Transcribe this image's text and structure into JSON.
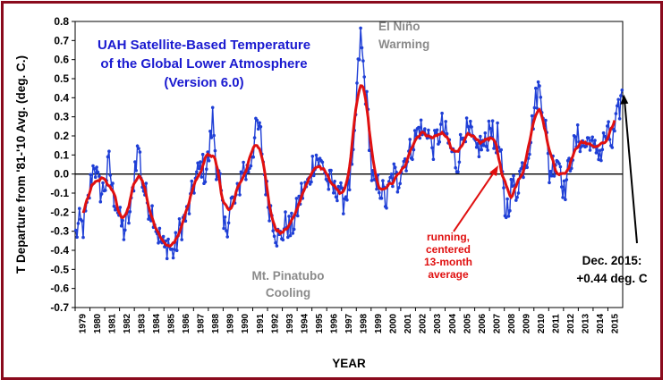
{
  "chart_data": {
    "type": "line",
    "title": [
      "UAH Satellite-Based Temperature",
      "of the Global Lower Atmosphere",
      "(Version 6.0)"
    ],
    "xlabel": "YEAR",
    "ylabel": "T Departure from '81-'10 Avg. (deg. C.)",
    "ylim": [
      -0.7,
      0.8
    ],
    "yticks": [
      "0.8",
      "0.7",
      "0.6",
      "0.5",
      "0.4",
      "0.3",
      "0.2",
      "0.1",
      "0.0",
      "-0.1",
      "-0.2",
      "-0.3",
      "-0.4",
      "-0.5",
      "-0.6",
      "-0.7"
    ],
    "xticks": [
      "1979",
      "1980",
      "1981",
      "1982",
      "1983",
      "1984",
      "1985",
      "1986",
      "1987",
      "1988",
      "1989",
      "1990",
      "1991",
      "1992",
      "1993",
      "1994",
      "1995",
      "1996",
      "1997",
      "1998",
      "1999",
      "2000",
      "2001",
      "2002",
      "2003",
      "2004",
      "2005",
      "2006",
      "2007",
      "2008",
      "2009",
      "2010",
      "2011",
      "2012",
      "2013",
      "2014",
      "2015"
    ],
    "x_start": "1979-01",
    "x_end": "2015-12",
    "monthly_anchors": [
      [
        "1979-01",
        -0.32
      ],
      [
        "1979-04",
        -0.26
      ],
      [
        "1979-07",
        -0.28
      ],
      [
        "1979-10",
        -0.2
      ],
      [
        "1980-01",
        -0.05
      ],
      [
        "1980-04",
        0.07
      ],
      [
        "1980-07",
        -0.05
      ],
      [
        "1980-10",
        -0.1
      ],
      [
        "1981-01",
        -0.05
      ],
      [
        "1981-04",
        0.06
      ],
      [
        "1981-07",
        -0.1
      ],
      [
        "1981-10",
        -0.15
      ],
      [
        "1982-01",
        -0.25
      ],
      [
        "1982-04",
        -0.3
      ],
      [
        "1982-07",
        -0.25
      ],
      [
        "1982-10",
        -0.18
      ],
      [
        "1983-01",
        0.05
      ],
      [
        "1983-04",
        0.15
      ],
      [
        "1983-07",
        -0.05
      ],
      [
        "1983-10",
        -0.12
      ],
      [
        "1984-01",
        -0.18
      ],
      [
        "1984-04",
        -0.2
      ],
      [
        "1984-07",
        -0.3
      ],
      [
        "1984-10",
        -0.35
      ],
      [
        "1985-01",
        -0.4
      ],
      [
        "1985-04",
        -0.35
      ],
      [
        "1985-07",
        -0.42
      ],
      [
        "1985-10",
        -0.38
      ],
      [
        "1986-01",
        -0.3
      ],
      [
        "1986-04",
        -0.25
      ],
      [
        "1986-07",
        -0.22
      ],
      [
        "1986-10",
        -0.15
      ],
      [
        "1987-01",
        -0.05
      ],
      [
        "1987-04",
        0.0
      ],
      [
        "1987-07",
        0.05
      ],
      [
        "1987-10",
        0.0
      ],
      [
        "1988-01",
        0.1
      ],
      [
        "1988-04",
        0.3
      ],
      [
        "1988-07",
        0.05
      ],
      [
        "1988-10",
        -0.05
      ],
      [
        "1989-01",
        -0.3
      ],
      [
        "1989-04",
        -0.25
      ],
      [
        "1989-07",
        -0.15
      ],
      [
        "1989-10",
        -0.15
      ],
      [
        "1990-01",
        -0.1
      ],
      [
        "1990-04",
        0.05
      ],
      [
        "1990-07",
        0.0
      ],
      [
        "1990-10",
        0.05
      ],
      [
        "1991-01",
        0.15
      ],
      [
        "1991-04",
        0.25
      ],
      [
        "1991-07",
        0.2
      ],
      [
        "1991-10",
        0.0
      ],
      [
        "1992-01",
        -0.15
      ],
      [
        "1992-04",
        -0.2
      ],
      [
        "1992-07",
        -0.3
      ],
      [
        "1992-10",
        -0.35
      ],
      [
        "1993-01",
        -0.3
      ],
      [
        "1993-04",
        -0.25
      ],
      [
        "1993-07",
        -0.3
      ],
      [
        "1993-10",
        -0.25
      ],
      [
        "1994-01",
        -0.18
      ],
      [
        "1994-04",
        -0.1
      ],
      [
        "1994-07",
        -0.08
      ],
      [
        "1994-10",
        -0.05
      ],
      [
        "1995-01",
        0.05
      ],
      [
        "1995-04",
        0.1
      ],
      [
        "1995-07",
        0.05
      ],
      [
        "1995-10",
        0.05
      ],
      [
        "1996-01",
        -0.05
      ],
      [
        "1996-04",
        -0.05
      ],
      [
        "1996-07",
        -0.1
      ],
      [
        "1996-10",
        -0.05
      ],
      [
        "1997-01",
        -0.15
      ],
      [
        "1997-04",
        -0.1
      ],
      [
        "1997-07",
        -0.05
      ],
      [
        "1997-10",
        0.05
      ],
      [
        "1998-01",
        0.45
      ],
      [
        "1998-04",
        0.72
      ],
      [
        "1998-07",
        0.5
      ],
      [
        "1998-10",
        0.3
      ],
      [
        "1999-01",
        0.0
      ],
      [
        "1999-04",
        -0.1
      ],
      [
        "1999-07",
        -0.05
      ],
      [
        "1999-10",
        -0.1
      ],
      [
        "2000-01",
        -0.15
      ],
      [
        "2000-04",
        -0.05
      ],
      [
        "2000-07",
        0.0
      ],
      [
        "2000-10",
        -0.05
      ],
      [
        "2001-01",
        0.05
      ],
      [
        "2001-04",
        0.08
      ],
      [
        "2001-07",
        0.1
      ],
      [
        "2001-10",
        0.15
      ],
      [
        "2002-01",
        0.2
      ],
      [
        "2002-04",
        0.25
      ],
      [
        "2002-07",
        0.2
      ],
      [
        "2002-10",
        0.25
      ],
      [
        "2003-01",
        0.15
      ],
      [
        "2003-04",
        0.15
      ],
      [
        "2003-07",
        0.2
      ],
      [
        "2003-10",
        0.25
      ],
      [
        "2004-01",
        0.2
      ],
      [
        "2004-04",
        0.15
      ],
      [
        "2004-07",
        0.1
      ],
      [
        "2004-10",
        0.05
      ],
      [
        "2005-01",
        0.15
      ],
      [
        "2005-04",
        0.25
      ],
      [
        "2005-07",
        0.2
      ],
      [
        "2005-10",
        0.2
      ],
      [
        "2006-01",
        0.1
      ],
      [
        "2006-04",
        0.15
      ],
      [
        "2006-07",
        0.15
      ],
      [
        "2006-10",
        0.15
      ],
      [
        "2007-01",
        0.3
      ],
      [
        "2007-04",
        0.15
      ],
      [
        "2007-07",
        0.2
      ],
      [
        "2007-10",
        0.05
      ],
      [
        "2008-01",
        -0.2
      ],
      [
        "2008-04",
        -0.15
      ],
      [
        "2008-07",
        -0.05
      ],
      [
        "2008-10",
        -0.1
      ],
      [
        "2009-01",
        0.0
      ],
      [
        "2009-04",
        0.05
      ],
      [
        "2009-07",
        0.1
      ],
      [
        "2009-10",
        0.2
      ],
      [
        "2010-01",
        0.35
      ],
      [
        "2010-04",
        0.45
      ],
      [
        "2010-07",
        0.4
      ],
      [
        "2010-10",
        0.25
      ],
      [
        "2011-01",
        0.0
      ],
      [
        "2011-04",
        0.05
      ],
      [
        "2011-07",
        0.1
      ],
      [
        "2011-10",
        0.05
      ],
      [
        "2012-01",
        -0.1
      ],
      [
        "2012-04",
        0.0
      ],
      [
        "2012-07",
        0.1
      ],
      [
        "2012-10",
        0.15
      ],
      [
        "2013-01",
        0.2
      ],
      [
        "2013-04",
        0.15
      ],
      [
        "2013-07",
        0.15
      ],
      [
        "2013-10",
        0.2
      ],
      [
        "2014-01",
        0.1
      ],
      [
        "2014-04",
        0.15
      ],
      [
        "2014-07",
        0.1
      ],
      [
        "2014-10",
        0.2
      ],
      [
        "2015-01",
        0.2
      ],
      [
        "2015-04",
        0.15
      ],
      [
        "2015-07",
        0.25
      ],
      [
        "2015-10",
        0.35
      ],
      [
        "2015-12",
        0.44
      ]
    ],
    "series": [
      {
        "name": "monthly",
        "color": "#1f3fd6",
        "style": "line-with-markers"
      },
      {
        "name": "running, centered 13-month average",
        "color": "#e01010",
        "style": "thick-line"
      }
    ],
    "zero_line": true,
    "grid": false,
    "annotations": {
      "el_nino": [
        "El Niño",
        "Warming"
      ],
      "pinatubo": [
        "Mt. Pinatubo",
        "Cooling"
      ],
      "running": [
        "running,",
        "centered",
        "13-month",
        "average"
      ],
      "last_value": [
        "Dec. 2015:",
        "+0.44 deg. C"
      ]
    },
    "colors": {
      "frame": "#8a0a1d",
      "title": "#1a1ad0",
      "annotation_gray": "#8a8a8a",
      "average": "#e01010",
      "monthly": "#1f3fd6"
    }
  }
}
